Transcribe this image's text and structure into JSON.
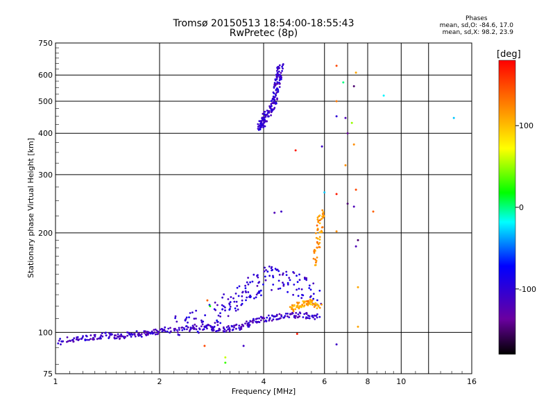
{
  "chart_data": {
    "type": "scatter",
    "title": "Tromsø 20150513 18:54:00-18:55:43",
    "subtitle": "RwPretec (8p)",
    "xlabel": "Frequency [MHz]",
    "ylabel": "Stationary phase Virtual Height [km]",
    "x_scale": "log",
    "y_scale": "log",
    "xlim": [
      1,
      16
    ],
    "ylim": [
      75,
      750
    ],
    "x_ticks": [
      1,
      2,
      4,
      6,
      8,
      10,
      16
    ],
    "y_ticks": [
      75,
      100,
      200,
      300,
      400,
      500,
      600,
      750
    ],
    "grid": true,
    "stats_header": "Phases",
    "stats_lines": [
      "mean, sd,O: -84.6, 17.0",
      "mean, sd,X:  98.2, 23.9"
    ],
    "colorbar": {
      "label": "[deg]",
      "range": [
        -180,
        180
      ],
      "ticks": [
        -100,
        0,
        100
      ]
    },
    "traces": [
      {
        "freq": [
          1.0,
          1.1,
          1.2,
          1.3,
          1.4,
          1.5,
          1.6,
          1.7,
          1.8,
          1.9,
          2.0,
          2.2,
          2.4,
          2.6,
          2.8,
          3.0,
          3.2,
          3.4,
          3.6,
          3.8,
          4.0,
          4.3,
          4.6,
          5.0,
          5.4,
          5.8
        ],
        "height": [
          93,
          95,
          96,
          97,
          98,
          97,
          98,
          99,
          99,
          100,
          101,
          102,
          103,
          104,
          103,
          102,
          103,
          104,
          106,
          108,
          110,
          111,
          112,
          113,
          112,
          111
        ],
        "phase": -110
      },
      {
        "freq": [
          2.2,
          2.5,
          2.8,
          3.0,
          3.2,
          3.4,
          3.6,
          3.8,
          4.0,
          4.3,
          4.6,
          5.0,
          5.4,
          5.8
        ],
        "height": [
          104,
          108,
          112,
          116,
          122,
          128,
          134,
          140,
          145,
          148,
          146,
          140,
          134,
          130
        ],
        "phase": -100
      },
      {
        "freq": [
          4.8,
          5.0,
          5.2,
          5.4,
          5.6,
          5.8
        ],
        "height": [
          118,
          120,
          122,
          124,
          123,
          120
        ],
        "phase": 110
      },
      {
        "freq": [
          5.6,
          5.7,
          5.8,
          5.85,
          5.9
        ],
        "height": [
          160,
          180,
          200,
          220,
          232
        ],
        "phase": 120
      },
      {
        "freq": [
          3.9,
          3.95,
          4.0,
          4.1,
          4.2,
          4.3,
          4.35,
          4.4,
          4.45,
          4.5
        ],
        "height": [
          410,
          425,
          440,
          455,
          470,
          500,
          540,
          580,
          610,
          640
        ],
        "phase": -105
      }
    ],
    "scattered_points": [
      {
        "freq": 6.5,
        "height": 640,
        "phase": 150
      },
      {
        "freq": 6.5,
        "height": 500,
        "phase": 130
      },
      {
        "freq": 6.8,
        "height": 570,
        "phase": 0
      },
      {
        "freq": 7.4,
        "height": 610,
        "phase": 110
      },
      {
        "freq": 7.3,
        "height": 555,
        "phase": -150
      },
      {
        "freq": 8.9,
        "height": 520,
        "phase": -20
      },
      {
        "freq": 14.2,
        "height": 445,
        "phase": -30
      },
      {
        "freq": 6.5,
        "height": 450,
        "phase": -100
      },
      {
        "freq": 6.9,
        "height": 445,
        "phase": -120
      },
      {
        "freq": 7.2,
        "height": 430,
        "phase": 50
      },
      {
        "freq": 7.0,
        "height": 400,
        "phase": -140
      },
      {
        "freq": 7.3,
        "height": 370,
        "phase": 120
      },
      {
        "freq": 5.9,
        "height": 365,
        "phase": -110
      },
      {
        "freq": 4.95,
        "height": 355,
        "phase": 170
      },
      {
        "freq": 6.9,
        "height": 320,
        "phase": 120
      },
      {
        "freq": 7.4,
        "height": 270,
        "phase": 150
      },
      {
        "freq": 6.5,
        "height": 262,
        "phase": 170
      },
      {
        "freq": 6.0,
        "height": 265,
        "phase": -30
      },
      {
        "freq": 7.0,
        "height": 245,
        "phase": -150
      },
      {
        "freq": 7.3,
        "height": 240,
        "phase": -120
      },
      {
        "freq": 8.3,
        "height": 232,
        "phase": 140
      },
      {
        "freq": 4.3,
        "height": 230,
        "phase": -120
      },
      {
        "freq": 4.5,
        "height": 232,
        "phase": -110
      },
      {
        "freq": 6.5,
        "height": 202,
        "phase": 120
      },
      {
        "freq": 7.5,
        "height": 190,
        "phase": -150
      },
      {
        "freq": 7.4,
        "height": 182,
        "phase": -120
      },
      {
        "freq": 7.5,
        "height": 137,
        "phase": 110
      },
      {
        "freq": 7.5,
        "height": 104,
        "phase": 110
      },
      {
        "freq": 6.5,
        "height": 92,
        "phase": -110
      },
      {
        "freq": 5.0,
        "height": 99,
        "phase": 170
      },
      {
        "freq": 2.7,
        "height": 91,
        "phase": 150
      },
      {
        "freq": 3.1,
        "height": 84,
        "phase": 60
      },
      {
        "freq": 3.1,
        "height": 81,
        "phase": 30
      },
      {
        "freq": 3.5,
        "height": 91,
        "phase": -110
      },
      {
        "freq": 2.75,
        "height": 125,
        "phase": 140
      },
      {
        "freq": 2.8,
        "height": 120,
        "phase": 20
      }
    ]
  }
}
